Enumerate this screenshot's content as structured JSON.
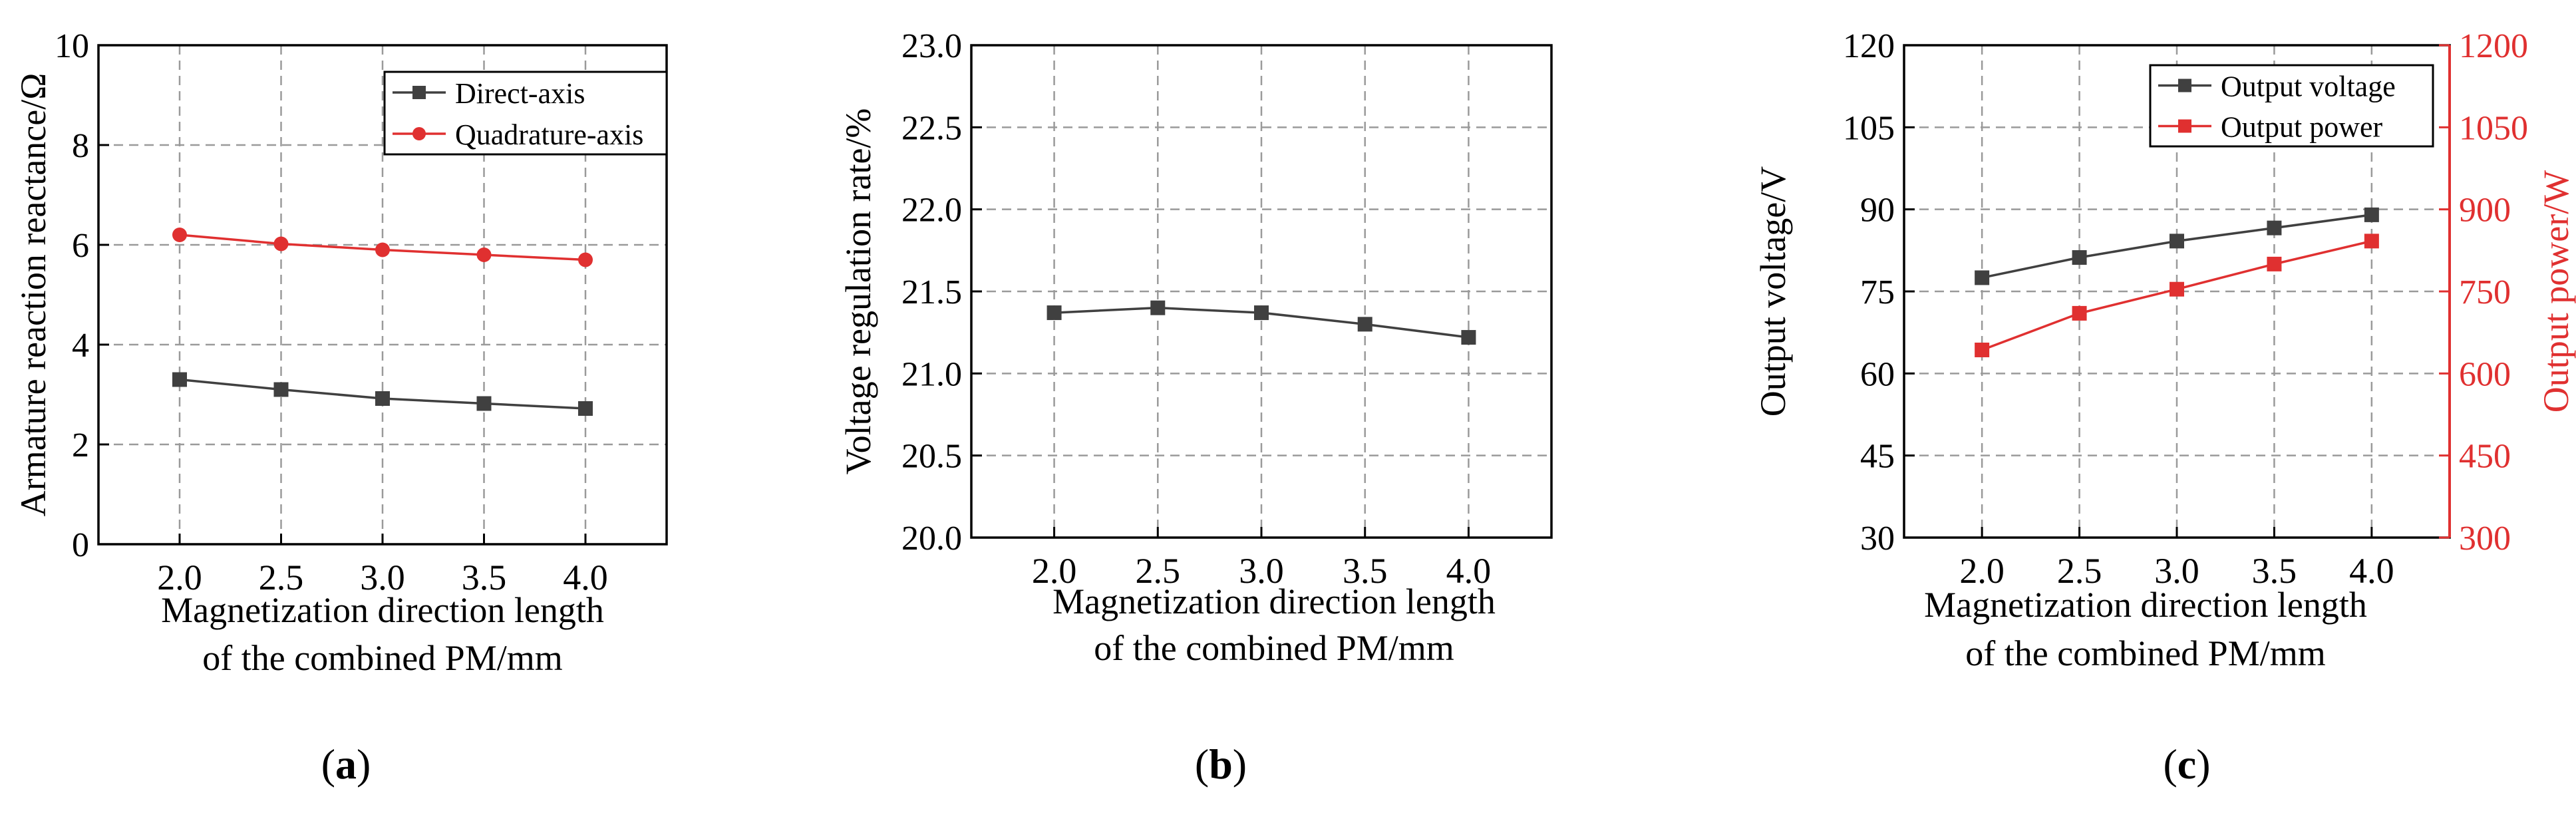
{
  "chart_data": [
    {
      "type": "line",
      "panel_label": "(a)",
      "title": "",
      "xlabel_lines": [
        "Magnetization direction length",
        "of the combined PM/mm"
      ],
      "ylabel": "Armature reaction reactance/Ω",
      "xlim": [
        1.6,
        4.4
      ],
      "ylim": [
        0,
        10
      ],
      "x_ticks": [
        "2.0",
        "2.5",
        "3.0",
        "3.5",
        "4.0"
      ],
      "y_ticks": [
        "0",
        "2",
        "4",
        "6",
        "8",
        "10"
      ],
      "grid": true,
      "legend_position": "top-right",
      "x": [
        2.0,
        2.5,
        3.0,
        3.5,
        4.0
      ],
      "series": [
        {
          "name": "Direct-axis",
          "values": [
            3.3,
            3.1,
            2.92,
            2.82,
            2.72
          ],
          "color": "#404040",
          "marker": "square",
          "axis": "left"
        },
        {
          "name": "Quadrature-axis",
          "values": [
            6.2,
            6.02,
            5.9,
            5.8,
            5.7
          ],
          "color": "#e03030",
          "marker": "circle",
          "axis": "left"
        }
      ]
    },
    {
      "type": "line",
      "panel_label": "(b)",
      "title": "",
      "xlabel_lines": [
        "Magnetization direction length",
        "of the combined PM/mm"
      ],
      "ylabel": "Voltage regulation rate/%",
      "xlim": [
        1.6,
        4.4
      ],
      "ylim": [
        20.0,
        23.0
      ],
      "x_ticks": [
        "2.0",
        "2.5",
        "3.0",
        "3.5",
        "4.0"
      ],
      "y_ticks": [
        "20.0",
        "20.5",
        "21.0",
        "21.5",
        "22.0",
        "22.5",
        "23.0"
      ],
      "grid": true,
      "x": [
        2.0,
        2.5,
        3.0,
        3.5,
        4.0
      ],
      "series": [
        {
          "values": [
            21.37,
            21.4,
            21.37,
            21.3,
            21.22
          ],
          "color": "#404040",
          "marker": "square",
          "axis": "left"
        }
      ]
    },
    {
      "type": "line",
      "panel_label": "(c)",
      "title": "",
      "xlabel_lines": [
        "Magnetization direction length",
        "of the combined PM/mm"
      ],
      "ylabel": "Output voltage/V",
      "y2label": "Output power/W",
      "xlim": [
        1.6,
        4.4
      ],
      "ylim": [
        30,
        120
      ],
      "y2lim": [
        300,
        1200
      ],
      "x_ticks": [
        "2.0",
        "2.5",
        "3.0",
        "3.5",
        "4.0"
      ],
      "y_ticks": [
        "30",
        "45",
        "60",
        "75",
        "90",
        "105",
        "120"
      ],
      "y2_ticks": [
        "300",
        "450",
        "600",
        "750",
        "900",
        "1050",
        "1200"
      ],
      "grid": true,
      "legend_position": "top-right",
      "x": [
        2.0,
        2.5,
        3.0,
        3.5,
        4.0
      ],
      "series": [
        {
          "name": "Output voltage",
          "values": [
            77.5,
            81.2,
            84.2,
            86.6,
            89.0
          ],
          "color": "#404040",
          "marker": "square",
          "axis": "left"
        },
        {
          "name": "Output power",
          "values": [
            643,
            710,
            754,
            800,
            842
          ],
          "color": "#e03030",
          "marker": "square",
          "axis": "right"
        }
      ]
    }
  ],
  "colors": {
    "right_axis": "#e03030",
    "axis": "#000000",
    "grid": "#9a9a9a"
  }
}
